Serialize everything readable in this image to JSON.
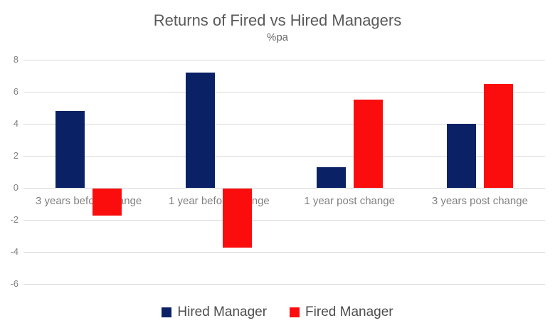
{
  "chart_data": {
    "type": "bar",
    "title": "Returns of Fired vs Hired Managers",
    "subtitle": "%pa",
    "categories": [
      "3 years before change",
      "1 year before change",
      "1 year post change",
      "3 years post change"
    ],
    "series": [
      {
        "name": "Hired Manager",
        "color": "#0a2166",
        "values": [
          4.8,
          7.2,
          1.3,
          4.0
        ]
      },
      {
        "name": "Fired Manager",
        "color": "#fc0d0d",
        "values": [
          -1.7,
          -3.7,
          5.5,
          6.5
        ]
      }
    ],
    "ylim": [
      -6,
      8
    ],
    "yticks": [
      8,
      6,
      4,
      2,
      0,
      -2,
      -4,
      -6
    ],
    "xlabel": "",
    "ylabel": "",
    "grid": true,
    "legend_position": "bottom"
  },
  "colors": {
    "background": "#ffffff",
    "gridline": "#d9d9d9",
    "title_text": "#595959",
    "subtitle_text": "#666666",
    "axis_text": "#808080",
    "legend_text": "#4d4d4d",
    "hired_bar": "#0a2166",
    "fired_bar": "#fc0d0d"
  }
}
